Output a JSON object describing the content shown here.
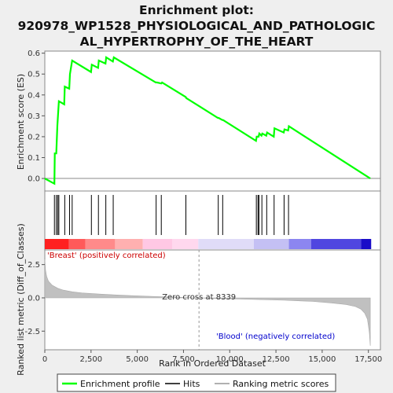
{
  "chart_data": {
    "type": "line",
    "title_lines": [
      "Enrichment plot:",
      "920978_WP1528_PHYSIOLOGICAL_AND_PATHOLOGIC",
      "AL_HYPERTROPHY_OF_THE_HEART"
    ],
    "es_panel": {
      "ylabel": "Enrichment score (ES)",
      "ylim": [
        -0.06,
        0.61
      ],
      "yticks": [
        "0.0",
        "0.1",
        "0.2",
        "0.3",
        "0.4",
        "0.5",
        "0.6"
      ],
      "ytick_values": [
        0.0,
        0.1,
        0.2,
        0.3,
        0.4,
        0.5,
        0.6
      ],
      "line_color": "#00ff00",
      "series": [
        {
          "name": "Enrichment profile",
          "x": [
            0,
            520,
            540,
            620,
            680,
            760,
            1050,
            1080,
            1320,
            1360,
            1480,
            2500,
            2540,
            2880,
            2920,
            3280,
            3320,
            3680,
            3730,
            6000,
            6060,
            6300,
            6340,
            7620,
            7650,
            9360,
            9400,
            9600,
            9640,
            11420,
            11460,
            11560,
            11600,
            11720,
            11760,
            11980,
            12020,
            12380,
            12420,
            12920,
            12960,
            13160,
            13200,
            17600
          ],
          "y": [
            0.0,
            -0.025,
            0.12,
            0.12,
            0.255,
            0.37,
            0.355,
            0.44,
            0.43,
            0.5,
            0.565,
            0.51,
            0.545,
            0.53,
            0.565,
            0.55,
            0.58,
            0.56,
            0.58,
            0.46,
            0.46,
            0.455,
            0.46,
            0.39,
            0.385,
            0.29,
            0.29,
            0.28,
            0.28,
            0.18,
            0.2,
            0.2,
            0.215,
            0.205,
            0.215,
            0.205,
            0.22,
            0.2,
            0.24,
            0.22,
            0.235,
            0.23,
            0.25,
            0.0
          ]
        }
      ]
    },
    "hits_panel": {
      "hit_positions": [
        520,
        620,
        700,
        760,
        1080,
        1340,
        1480,
        2520,
        2900,
        3300,
        3700,
        6020,
        6300,
        7630,
        9380,
        9620,
        11440,
        11530,
        11580,
        11740,
        12000,
        12400,
        12940,
        13180
      ],
      "colorbar": [
        {
          "from": 0,
          "to": 1300,
          "color": "#ff2020"
        },
        {
          "from": 1300,
          "to": 2200,
          "color": "#ff5a5a"
        },
        {
          "from": 2200,
          "to": 3800,
          "color": "#ff8a8a"
        },
        {
          "from": 3800,
          "to": 5300,
          "color": "#ffb0b0"
        },
        {
          "from": 5300,
          "to": 6900,
          "color": "#ffc8e4"
        },
        {
          "from": 6900,
          "to": 8300,
          "color": "#ffd8ee"
        },
        {
          "from": 8300,
          "to": 11300,
          "color": "#e0dcf8"
        },
        {
          "from": 11300,
          "to": 13200,
          "color": "#c4c0f4"
        },
        {
          "from": 13200,
          "to": 14400,
          "color": "#8c86f0"
        },
        {
          "from": 14400,
          "to": 17100,
          "color": "#5046e0"
        },
        {
          "from": 17100,
          "to": 17650,
          "color": "#1a0cc8"
        }
      ]
    },
    "metric_panel": {
      "ylabel": "Ranked list metric (Diff_of_Classes)",
      "ylim": [
        -3.9,
        3.6
      ],
      "yticks": [
        "2.5",
        "0.0",
        "-2.5"
      ],
      "ytick_values": [
        2.5,
        0.0,
        -2.5
      ],
      "label_pos": "'Breast' (positively correlated)",
      "label_neg": "'Blood' (negatively correlated)",
      "zero_cross_text": "Zero cross at 8339",
      "zero_cross": 8339,
      "curve": {
        "x": [
          0,
          40,
          100,
          200,
          400,
          700,
          1000,
          1500,
          2000,
          3000,
          4000,
          5000,
          6000,
          7000,
          8339,
          9500,
          11000,
          13000,
          14500,
          15500,
          16300,
          16800,
          17100,
          17300,
          17450,
          17550,
          17600
        ],
        "y": [
          2.9,
          2.1,
          1.6,
          1.25,
          0.95,
          0.72,
          0.58,
          0.45,
          0.37,
          0.28,
          0.21,
          0.15,
          0.1,
          0.05,
          0.0,
          -0.05,
          -0.1,
          -0.18,
          -0.27,
          -0.38,
          -0.5,
          -0.65,
          -0.85,
          -1.15,
          -1.6,
          -2.6,
          -3.6
        ]
      }
    },
    "xaxis": {
      "xlabel": "Rank in Ordered Dataset",
      "xlim": [
        0,
        18150
      ],
      "xticks": [
        "0",
        "2,500",
        "5,000",
        "7,500",
        "10,000",
        "12,500",
        "15,000",
        "17,500"
      ],
      "xtick_values": [
        0,
        2500,
        5000,
        7500,
        10000,
        12500,
        15000,
        17500
      ]
    },
    "legend": {
      "placement": "bottom",
      "items": [
        "Enrichment profile",
        "Hits",
        "Ranking metric scores"
      ]
    }
  }
}
